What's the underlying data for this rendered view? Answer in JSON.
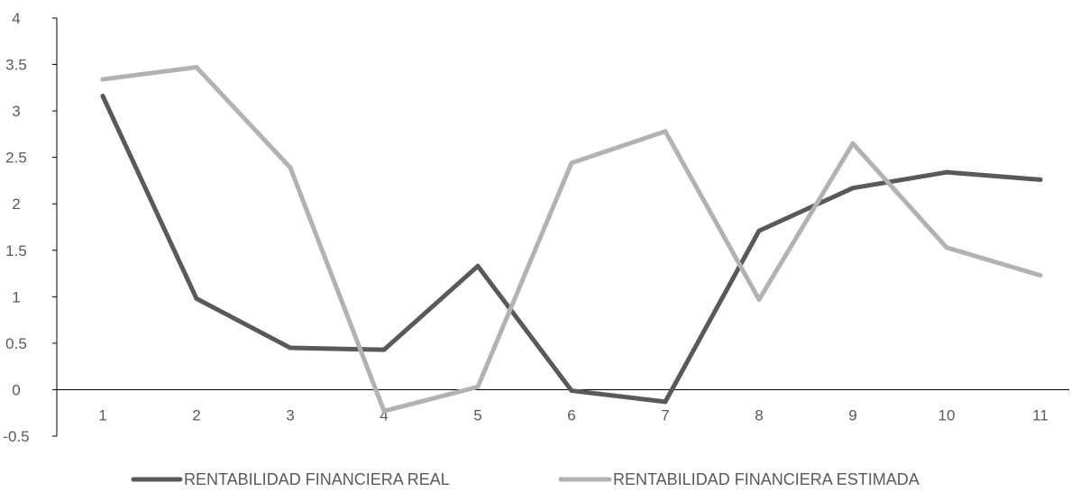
{
  "chart_data": {
    "type": "line",
    "x": [
      1,
      2,
      3,
      4,
      5,
      6,
      7,
      8,
      9,
      10,
      11
    ],
    "categories": [
      "1",
      "2",
      "3",
      "4",
      "5",
      "6",
      "7",
      "8",
      "9",
      "10",
      "11"
    ],
    "ylim": [
      -0.5,
      4
    ],
    "yticks": [
      "-0.5",
      "0",
      "0.5",
      "1",
      "1.5",
      "2",
      "2.5",
      "3",
      "3.5",
      "4"
    ],
    "ytick_values": [
      -0.5,
      0,
      0.5,
      1,
      1.5,
      2,
      2.5,
      3,
      3.5,
      4
    ],
    "grid": false,
    "legend_position": "bottom",
    "series": [
      {
        "name": "RENTABILIDAD FINANCIERA REAL",
        "color": "#595959",
        "values": [
          3.16,
          0.98,
          0.45,
          0.43,
          1.33,
          -0.01,
          -0.13,
          1.71,
          2.17,
          2.34,
          2.26
        ]
      },
      {
        "name": "RENTABILIDAD FINANCIERA ESTIMADA",
        "color": "#b2b2b2",
        "values": [
          3.34,
          3.47,
          2.39,
          -0.23,
          0.03,
          2.44,
          2.78,
          0.97,
          2.65,
          1.53,
          1.23
        ]
      }
    ]
  }
}
